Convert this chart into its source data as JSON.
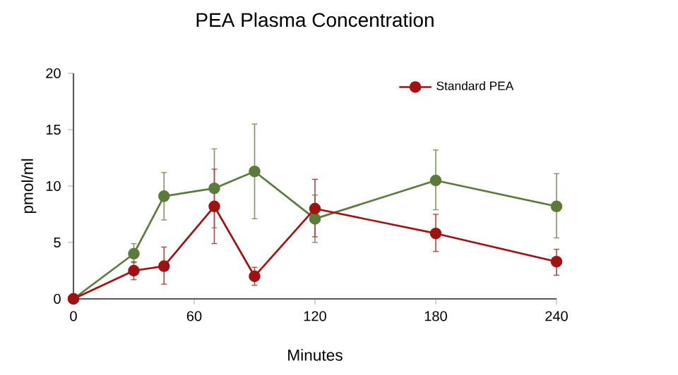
{
  "chart_data": {
    "type": "line",
    "title": "PEA Plasma Concentration",
    "xlabel": "Minutes",
    "ylabel": "pmol/ml",
    "x": [
      0,
      30,
      45,
      70,
      90,
      120,
      180,
      240
    ],
    "series": [
      {
        "color": "#5b7b3b",
        "values": [
          0,
          4,
          9.1,
          9.8,
          11.3,
          7.1,
          10.5,
          8.2
        ],
        "errors": [
          null,
          [
            3.2,
            4.9
          ],
          [
            7,
            11.2
          ],
          [
            6.3,
            13.3
          ],
          [
            7.1,
            15.5
          ],
          [
            5,
            9.2
          ],
          [
            7.9,
            13.2
          ],
          [
            5.4,
            11.1
          ]
        ]
      },
      {
        "name": "Standard PEA",
        "color": "#a01212",
        "values": [
          0,
          2.5,
          2.9,
          8.2,
          2,
          8,
          5.8,
          3.3
        ],
        "errors": [
          null,
          [
            1.7,
            3.3
          ],
          [
            1.3,
            4.6
          ],
          [
            4.9,
            11.5
          ],
          [
            1.2,
            2.8
          ],
          [
            5.5,
            10.6
          ],
          [
            4.2,
            7.5
          ],
          [
            2.1,
            4.4
          ]
        ]
      }
    ],
    "xlim": [
      0,
      240
    ],
    "xticks": [
      0,
      60,
      120,
      180,
      240
    ],
    "ylim": [
      0,
      20
    ],
    "yticks": [
      0,
      5,
      10,
      15,
      20
    ],
    "grid": false,
    "legend": "top right",
    "marker": "circle",
    "line_style": "solid"
  }
}
